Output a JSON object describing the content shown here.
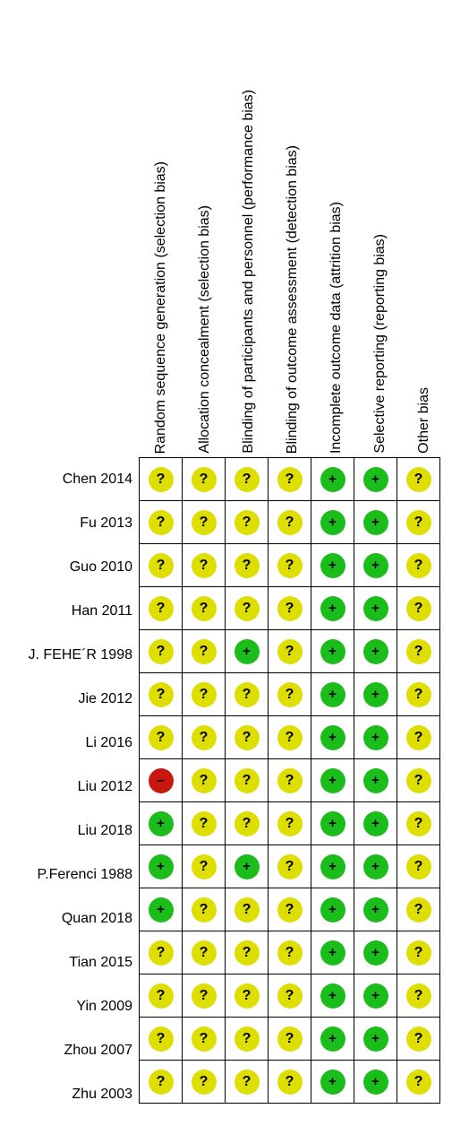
{
  "colors": {
    "low": "#1bbd1b",
    "unclear": "#dede00",
    "high": "#c8170f"
  },
  "symbols": {
    "low": "+",
    "unclear": "?",
    "high": "–"
  },
  "domains": [
    "Random sequence generation (selection bias)",
    "Allocation concealment (selection bias)",
    "Blinding of participants and personnel (performance bias)",
    "Blinding of outcome assessment (detection bias)",
    "Incomplete outcome data (attrition bias)",
    "Selective reporting (reporting bias)",
    "Other bias"
  ],
  "studies": [
    {
      "name": "Chen 2014",
      "ratings": [
        "unclear",
        "unclear",
        "unclear",
        "unclear",
        "low",
        "low",
        "unclear"
      ]
    },
    {
      "name": "Fu 2013",
      "ratings": [
        "unclear",
        "unclear",
        "unclear",
        "unclear",
        "low",
        "low",
        "unclear"
      ]
    },
    {
      "name": "Guo 2010",
      "ratings": [
        "unclear",
        "unclear",
        "unclear",
        "unclear",
        "low",
        "low",
        "unclear"
      ]
    },
    {
      "name": "Han 2011",
      "ratings": [
        "unclear",
        "unclear",
        "unclear",
        "unclear",
        "low",
        "low",
        "unclear"
      ]
    },
    {
      "name": "J. FEHE´R 1998",
      "ratings": [
        "unclear",
        "unclear",
        "low",
        "unclear",
        "low",
        "low",
        "unclear"
      ]
    },
    {
      "name": "Jie 2012",
      "ratings": [
        "unclear",
        "unclear",
        "unclear",
        "unclear",
        "low",
        "low",
        "unclear"
      ]
    },
    {
      "name": "Li 2016",
      "ratings": [
        "unclear",
        "unclear",
        "unclear",
        "unclear",
        "low",
        "low",
        "unclear"
      ]
    },
    {
      "name": "Liu 2012",
      "ratings": [
        "high",
        "unclear",
        "unclear",
        "unclear",
        "low",
        "low",
        "unclear"
      ]
    },
    {
      "name": "Liu 2018",
      "ratings": [
        "low",
        "unclear",
        "unclear",
        "unclear",
        "low",
        "low",
        "unclear"
      ]
    },
    {
      "name": "P.Ferenci 1988",
      "ratings": [
        "low",
        "unclear",
        "low",
        "unclear",
        "low",
        "low",
        "unclear"
      ]
    },
    {
      "name": "Quan 2018",
      "ratings": [
        "low",
        "unclear",
        "unclear",
        "unclear",
        "low",
        "low",
        "unclear"
      ]
    },
    {
      "name": "Tian 2015",
      "ratings": [
        "unclear",
        "unclear",
        "unclear",
        "unclear",
        "low",
        "low",
        "unclear"
      ]
    },
    {
      "name": "Yin 2009",
      "ratings": [
        "unclear",
        "unclear",
        "unclear",
        "unclear",
        "low",
        "low",
        "unclear"
      ]
    },
    {
      "name": "Zhou 2007",
      "ratings": [
        "unclear",
        "unclear",
        "unclear",
        "unclear",
        "low",
        "low",
        "unclear"
      ]
    },
    {
      "name": "Zhu 2003",
      "ratings": [
        "unclear",
        "unclear",
        "unclear",
        "unclear",
        "low",
        "low",
        "unclear"
      ]
    }
  ]
}
